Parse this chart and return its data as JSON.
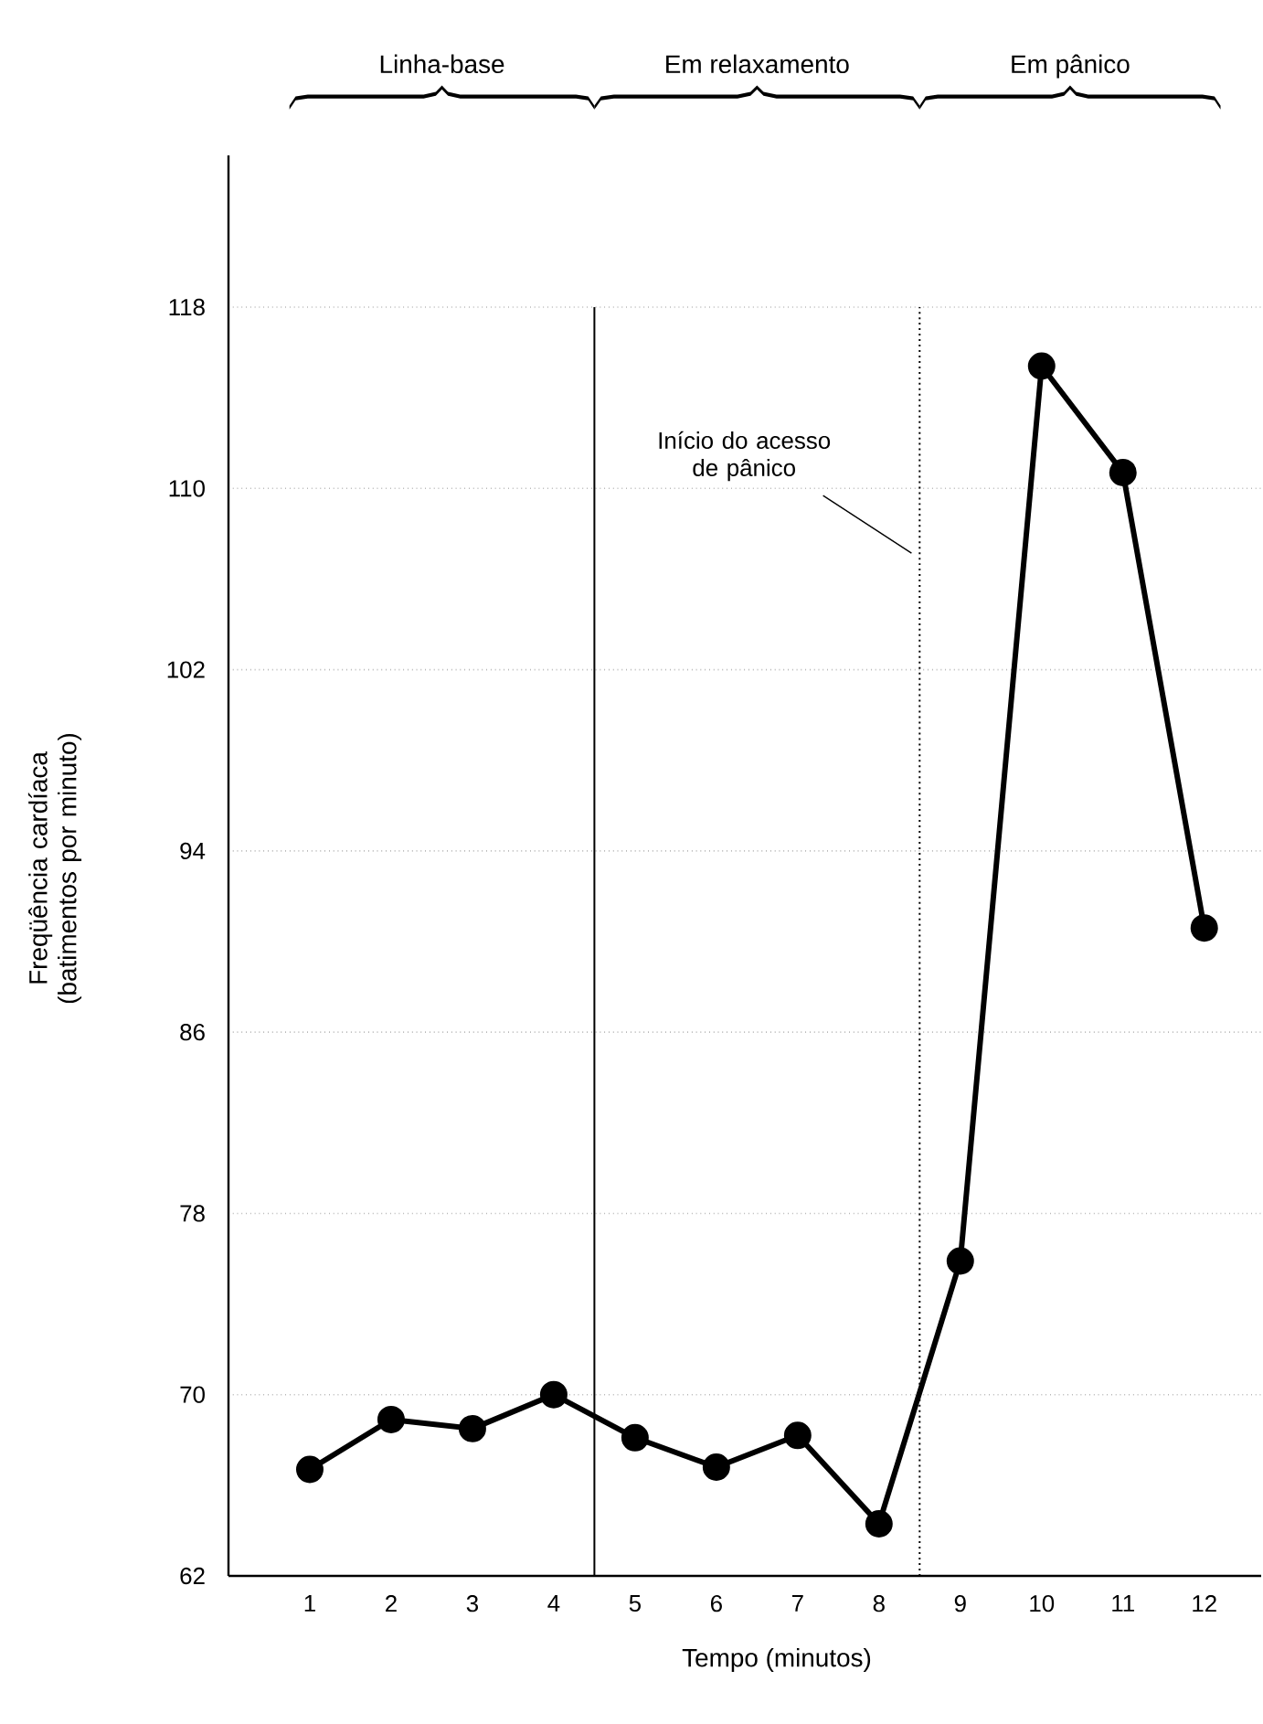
{
  "chart_data": {
    "type": "line",
    "xlabel": "Tempo (minutos)",
    "ylabel": "Freqüência cardíaca (batimentos por minuto)",
    "x": [
      1,
      2,
      3,
      4,
      5,
      6,
      7,
      8,
      9,
      10,
      11,
      12
    ],
    "series": [
      {
        "color": "#000000",
        "values": [
          66.7,
          68.9,
          68.5,
          70.0,
          68.1,
          66.8,
          68.2,
          64.3,
          75.9,
          115.4,
          110.7,
          90.6
        ]
      }
    ],
    "xlim": [
      0,
      12.7
    ],
    "xticks": [
      1,
      2,
      3,
      4,
      5,
      6,
      7,
      8,
      9,
      10,
      11,
      12
    ],
    "ylim": [
      62,
      124.7
    ],
    "yticks": [
      62,
      70,
      78,
      86,
      94,
      102,
      110,
      118
    ],
    "grid": "y",
    "marker": "circle",
    "line_style": "solid",
    "ref_lines": [
      {
        "axis": "x",
        "value": 4.5,
        "line_style": "solid",
        "color": "#000000"
      },
      {
        "axis": "x",
        "value": 8.5,
        "line_style": "dotted",
        "color": "#000000"
      }
    ],
    "annotations": [
      "Linha-base",
      "Em relaxamento",
      "Em pânico",
      "Início do acesso de pânico"
    ]
  }
}
